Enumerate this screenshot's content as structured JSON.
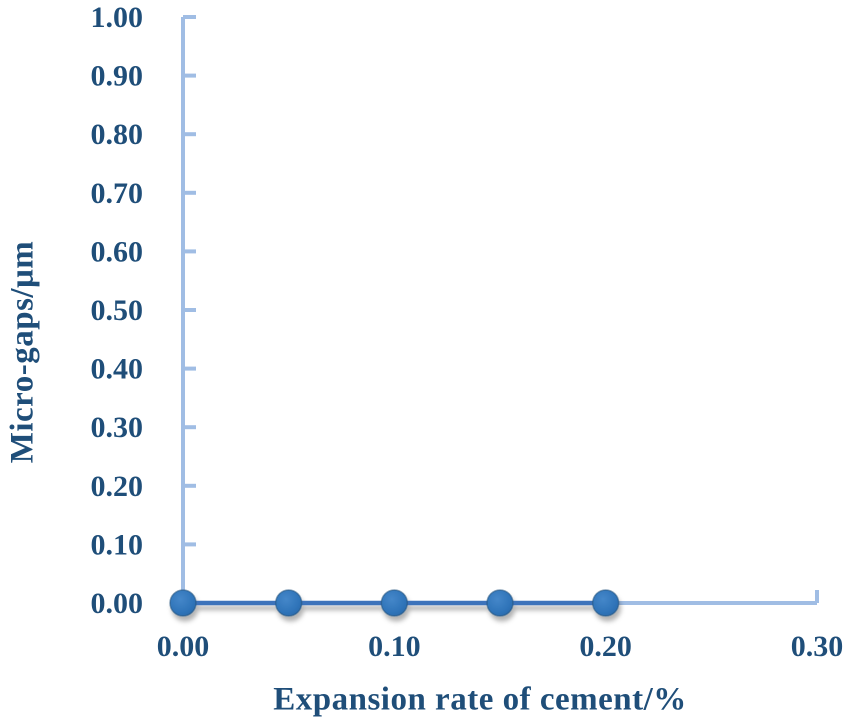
{
  "chart_data": {
    "type": "line",
    "title": "",
    "xlabel": "Expansion rate of cement/%",
    "ylabel": "Micro-gaps/μm",
    "xlim": [
      0,
      0.3
    ],
    "ylim": [
      0,
      1.0
    ],
    "grid": false,
    "legend": "none",
    "tick_direction": "in",
    "series": [
      {
        "marker": "circle",
        "x": [
          0.0,
          0.05,
          0.1,
          0.15,
          0.2
        ],
        "y": [
          0.0,
          0.0,
          0.0,
          0.0,
          0.0
        ]
      }
    ],
    "x_ticks": [
      0,
      0.1,
      0.2,
      0.3
    ],
    "y_ticks": [
      0,
      0.1,
      0.2,
      0.3,
      0.4,
      0.5,
      0.6,
      0.7,
      0.8,
      0.9,
      1.0
    ],
    "x_tick_labels": [
      "0.00",
      "0.10",
      "0.20",
      "0.30"
    ],
    "y_tick_labels": [
      "0.00",
      "0.10",
      "0.20",
      "0.30",
      "0.40",
      "0.50",
      "0.60",
      "0.70",
      "0.80",
      "0.90",
      "1.00"
    ],
    "colors": {
      "background": "#ffffff",
      "axis_line": "#a0bde4",
      "tick_label": "#1f4e79",
      "axis_title": "#1f4e79",
      "data_line": "#3d73bb",
      "marker_fill": "#2e73b8",
      "marker_border": "#27567f"
    }
  }
}
